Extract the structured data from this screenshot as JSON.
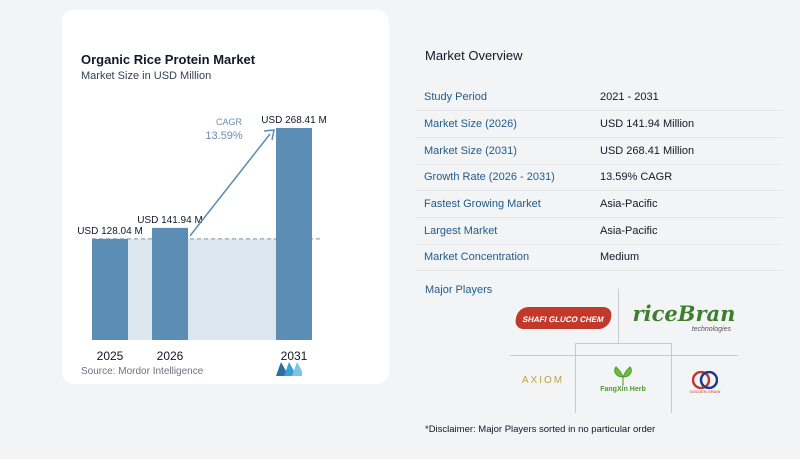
{
  "chart_data": {
    "type": "bar",
    "title": "Organic Rice Protein Market",
    "subtitle": "Market Size in USD Million",
    "categories": [
      "2025",
      "2026",
      "2031"
    ],
    "values": [
      128.04,
      141.94,
      268.41
    ],
    "value_labels": [
      "USD 128.04 M",
      "USD 141.94 M",
      "USD 268.41 M"
    ],
    "cagr_label": "CAGR",
    "cagr_value": "13.59%",
    "colors": {
      "bar": "#5b8db5",
      "baseline_area": "#dce6ef",
      "arrow": "#5b8db5",
      "cagr_text": "#6b8fb0"
    }
  },
  "source": "Source: Mordor Intelligence",
  "overview": {
    "title": "Market Overview",
    "rows": [
      {
        "label": "Study Period",
        "value": "2021 - 2031"
      },
      {
        "label": "Market Size (2026)",
        "value": "USD 141.94 Million"
      },
      {
        "label": "Market Size (2031)",
        "value": "USD 268.41 Million"
      },
      {
        "label": "Growth Rate (2026 - 2031)",
        "value": "13.59% CAGR"
      },
      {
        "label": "Fastest Growing Market",
        "value": "Asia-Pacific"
      },
      {
        "label": "Largest Market",
        "value": "Asia-Pacific"
      },
      {
        "label": "Market Concentration",
        "value": "Medium"
      }
    ]
  },
  "players": {
    "title": "Major Players",
    "names": [
      "SHAFI GLUCO CHEM",
      "riceBran",
      "technologies",
      "AXIOM",
      "FangXin Herb",
      "GOLDEN GRAIN"
    ]
  },
  "disclaimer": "*Disclaimer: Major Players sorted in no particular order"
}
